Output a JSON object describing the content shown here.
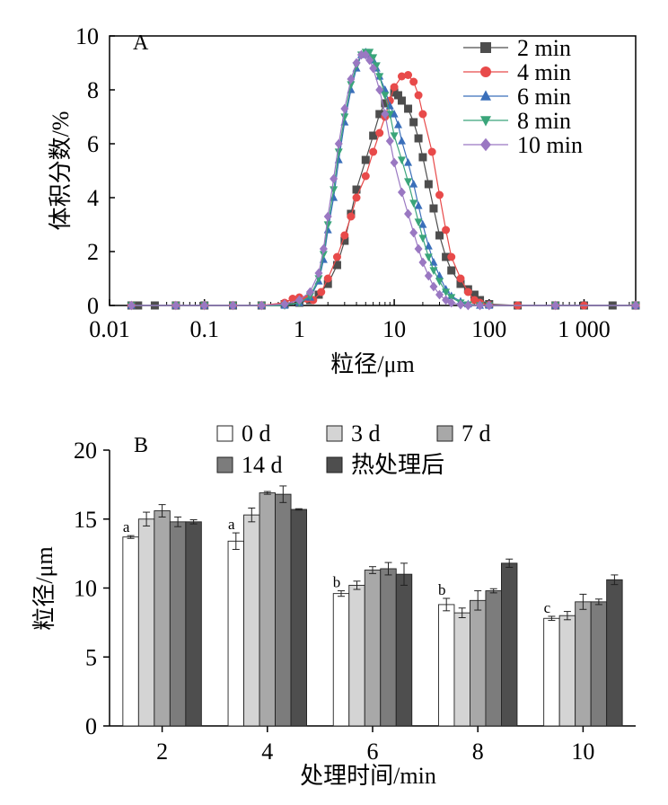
{
  "chart_data": [
    {
      "panel": "A",
      "type": "scatter",
      "xscale": "log",
      "xlabel": "粒径/μm",
      "ylabel": "体积分数/%",
      "xlim": [
        0.01,
        3500
      ],
      "ylim": [
        0,
        10
      ],
      "xticks": [
        0.01,
        0.1,
        1,
        10,
        100,
        1000
      ],
      "xtick_labels": [
        "0.01",
        "0.1",
        "1",
        "10",
        "100",
        "1 000"
      ],
      "yticks": [
        0,
        2,
        4,
        6,
        8,
        10
      ],
      "legend_position": "top-right",
      "series": [
        {
          "name": "2 min",
          "color": "#4d4d4d",
          "marker": "square",
          "x": [
            0.017,
            0.02,
            0.03,
            0.05,
            0.1,
            0.2,
            0.4,
            0.7,
            1.0,
            1.3,
            1.6,
            2.0,
            2.5,
            3.0,
            3.5,
            4.0,
            5.0,
            6.0,
            7.0,
            8.0,
            10.0,
            11.0,
            12.0,
            14.0,
            16.0,
            18.0,
            20.0,
            23.0,
            26.0,
            30.0,
            35.0,
            40.0,
            50.0,
            60.0,
            70.0,
            80.0,
            100.0,
            200.0,
            500.0,
            1000.0,
            2000.0,
            3500.0
          ],
          "y": [
            0.0,
            0.0,
            0.0,
            0.0,
            0.0,
            0.0,
            0.0,
            0.05,
            0.1,
            0.2,
            0.4,
            0.8,
            1.5,
            2.4,
            3.4,
            4.3,
            5.4,
            6.3,
            7.1,
            7.5,
            7.9,
            7.8,
            7.6,
            7.3,
            6.8,
            6.2,
            5.5,
            4.5,
            3.6,
            2.6,
            1.8,
            1.3,
            0.8,
            0.6,
            0.4,
            0.2,
            0.05,
            0.0,
            0.0,
            0.0,
            0.0,
            0.0
          ]
        },
        {
          "name": "4 min",
          "color": "#e84a4a",
          "marker": "circle",
          "x": [
            0.017,
            0.05,
            0.1,
            0.2,
            0.4,
            0.7,
            0.85,
            1.0,
            1.2,
            1.4,
            1.7,
            2.0,
            2.5,
            3.0,
            3.5,
            4.0,
            5.0,
            6.0,
            7.0,
            8.0,
            9.0,
            10.0,
            12.0,
            14.0,
            16.0,
            18.0,
            20.0,
            25.0,
            30.0,
            35.0,
            40.0,
            50.0,
            60.0,
            70.0,
            80.0,
            100.0,
            200.0,
            500.0,
            1000.0,
            3500.0
          ],
          "y": [
            0.0,
            0.0,
            0.0,
            0.0,
            0.0,
            0.1,
            0.25,
            0.3,
            0.25,
            0.2,
            0.5,
            1.0,
            1.8,
            2.6,
            3.3,
            4.0,
            4.8,
            5.7,
            6.4,
            7.0,
            7.6,
            8.1,
            8.5,
            8.55,
            8.3,
            7.8,
            7.1,
            5.7,
            4.1,
            2.8,
            1.8,
            1.0,
            0.5,
            0.2,
            0.1,
            0.02,
            0.0,
            0.0,
            0.0,
            0.0
          ]
        },
        {
          "name": "6 min",
          "color": "#3a6fba",
          "marker": "triangle-up",
          "x": [
            0.017,
            0.05,
            0.1,
            0.2,
            0.4,
            0.7,
            1.0,
            1.3,
            1.6,
            1.8,
            2.0,
            2.3,
            2.6,
            3.0,
            3.5,
            4.0,
            4.5,
            5.0,
            5.5,
            6.0,
            6.5,
            7.0,
            8.0,
            9.0,
            10.0,
            11.0,
            12.0,
            14.0,
            16.0,
            18.0,
            20.0,
            23.0,
            26.0,
            30.0,
            35.0,
            40.0,
            50.0,
            60.0,
            80.0,
            100.0,
            500.0,
            3500.0
          ],
          "y": [
            0.0,
            0.0,
            0.0,
            0.0,
            0.0,
            0.0,
            0.1,
            0.3,
            0.9,
            1.7,
            2.8,
            4.0,
            5.4,
            6.8,
            8.0,
            8.8,
            9.3,
            9.4,
            9.3,
            9.1,
            8.8,
            8.5,
            8.0,
            7.4,
            7.1,
            6.7,
            6.1,
            5.3,
            4.5,
            3.7,
            3.0,
            2.2,
            1.6,
            1.1,
            0.6,
            0.35,
            0.15,
            0.05,
            0.0,
            0.0,
            0.0,
            0.0
          ]
        },
        {
          "name": "8 min",
          "color": "#3aa57a",
          "marker": "triangle-down",
          "x": [
            0.017,
            0.05,
            0.1,
            0.2,
            0.4,
            0.7,
            1.0,
            1.3,
            1.6,
            1.8,
            2.0,
            2.3,
            2.6,
            3.0,
            3.5,
            4.0,
            4.5,
            5.0,
            5.5,
            6.0,
            6.5,
            7.0,
            8.0,
            9.0,
            10.0,
            12.0,
            14.0,
            16.0,
            18.0,
            20.0,
            23.0,
            26.0,
            30.0,
            35.0,
            40.0,
            50.0,
            60.0,
            80.0,
            100.0,
            500.0,
            3500.0
          ],
          "y": [
            0.0,
            0.0,
            0.0,
            0.0,
            0.0,
            0.0,
            0.1,
            0.35,
            1.0,
            1.9,
            3.0,
            4.3,
            5.7,
            7.0,
            8.2,
            8.9,
            9.3,
            9.4,
            9.4,
            9.2,
            8.9,
            8.5,
            7.8,
            7.1,
            6.3,
            5.4,
            4.6,
            3.8,
            3.1,
            2.5,
            1.8,
            1.3,
            0.9,
            0.5,
            0.3,
            0.1,
            0.03,
            0.0,
            0.0,
            0.0,
            0.0
          ]
        },
        {
          "name": "10 min",
          "color": "#9a78c2",
          "marker": "diamond",
          "x": [
            0.017,
            0.05,
            0.1,
            0.2,
            0.4,
            0.7,
            1.0,
            1.3,
            1.6,
            1.8,
            2.0,
            2.3,
            2.6,
            3.0,
            3.5,
            4.0,
            4.5,
            5.0,
            5.5,
            6.0,
            7.0,
            8.0,
            9.0,
            10.0,
            12.0,
            14.0,
            16.0,
            18.0,
            20.0,
            23.0,
            26.0,
            30.0,
            35.0,
            40.0,
            50.0,
            60.0,
            80.0,
            100.0,
            500.0,
            3500.0
          ],
          "y": [
            0.0,
            0.0,
            0.0,
            0.0,
            0.0,
            0.05,
            0.2,
            0.5,
            1.2,
            2.1,
            3.3,
            4.7,
            6.0,
            7.3,
            8.4,
            9.0,
            9.3,
            9.3,
            9.1,
            8.8,
            8.0,
            7.1,
            6.1,
            5.3,
            4.2,
            3.4,
            2.7,
            2.1,
            1.6,
            1.1,
            0.7,
            0.4,
            0.2,
            0.1,
            0.03,
            0.0,
            0.0,
            0.0,
            0.0,
            0.0
          ]
        }
      ]
    },
    {
      "panel": "B",
      "type": "bar",
      "xlabel": "处理时间/min",
      "ylabel": "粒径/μm",
      "ylim": [
        0,
        20
      ],
      "yticks": [
        0,
        5,
        10,
        15,
        20
      ],
      "categories": [
        "2",
        "4",
        "6",
        "8",
        "10"
      ],
      "legend_position": "top",
      "annotations": [
        "a",
        "a",
        "b",
        "b",
        "c"
      ],
      "series": [
        {
          "name": "0 d",
          "color": "#ffffff",
          "values": [
            13.7,
            13.4,
            9.6,
            8.8,
            7.8
          ],
          "errors": [
            0.1,
            0.6,
            0.2,
            0.45,
            0.15
          ]
        },
        {
          "name": "3 d",
          "color": "#d4d4d4",
          "values": [
            15.0,
            15.3,
            10.2,
            8.2,
            8.0
          ],
          "errors": [
            0.5,
            0.5,
            0.3,
            0.35,
            0.3
          ]
        },
        {
          "name": "7 d",
          "color": "#a8a8a8",
          "values": [
            15.6,
            16.9,
            11.3,
            9.1,
            9.0
          ],
          "errors": [
            0.45,
            0.1,
            0.25,
            0.7,
            0.55
          ]
        },
        {
          "name": "14 d",
          "color": "#7c7c7c",
          "values": [
            14.8,
            16.8,
            11.4,
            9.8,
            9.0
          ],
          "errors": [
            0.35,
            0.6,
            0.45,
            0.15,
            0.2
          ]
        },
        {
          "name": "热处理后",
          "color": "#4e4e4e",
          "values": [
            14.8,
            15.7,
            11.0,
            11.8,
            10.6
          ],
          "errors": [
            0.15,
            0.05,
            0.8,
            0.3,
            0.35
          ]
        }
      ]
    }
  ]
}
